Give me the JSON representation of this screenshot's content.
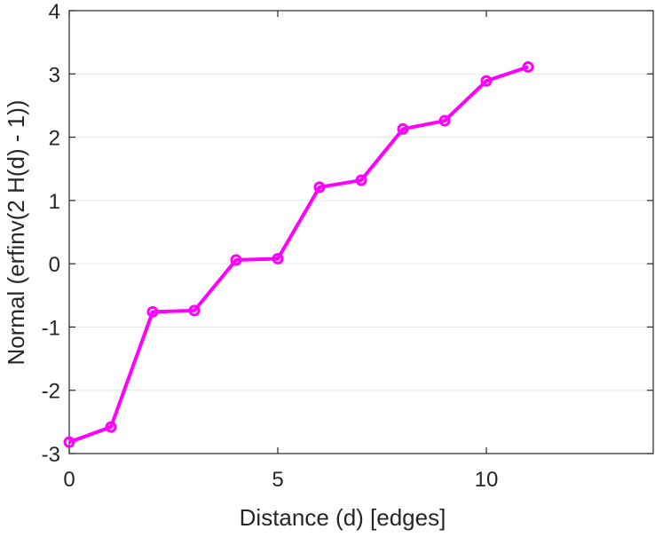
{
  "chart_data": {
    "type": "line",
    "title": "",
    "xlabel": "Distance (d) [edges]",
    "ylabel": "Normal (erfinv(2 H(d) - 1))",
    "xlim": [
      0,
      14
    ],
    "ylim": [
      -3,
      4
    ],
    "xticks": [
      0,
      5,
      10
    ],
    "xtick_labels": [
      "0",
      "5",
      "10"
    ],
    "yticks": [
      -3,
      -2,
      -1,
      0,
      1,
      2,
      3,
      4
    ],
    "ytick_labels": [
      "-3",
      "-2",
      "-1",
      "0",
      "1",
      "2",
      "3",
      "4"
    ],
    "grid": "horizontal",
    "series": [
      {
        "name": "erfinv",
        "color": "#ff00ff",
        "marker": "circle",
        "x": [
          0,
          1,
          2,
          3,
          4,
          5,
          6,
          7,
          8,
          9,
          10,
          11
        ],
        "y": [
          -2.82,
          -2.58,
          -0.76,
          -0.74,
          0.06,
          0.08,
          1.21,
          1.32,
          2.13,
          2.26,
          2.89,
          3.11
        ]
      }
    ]
  }
}
